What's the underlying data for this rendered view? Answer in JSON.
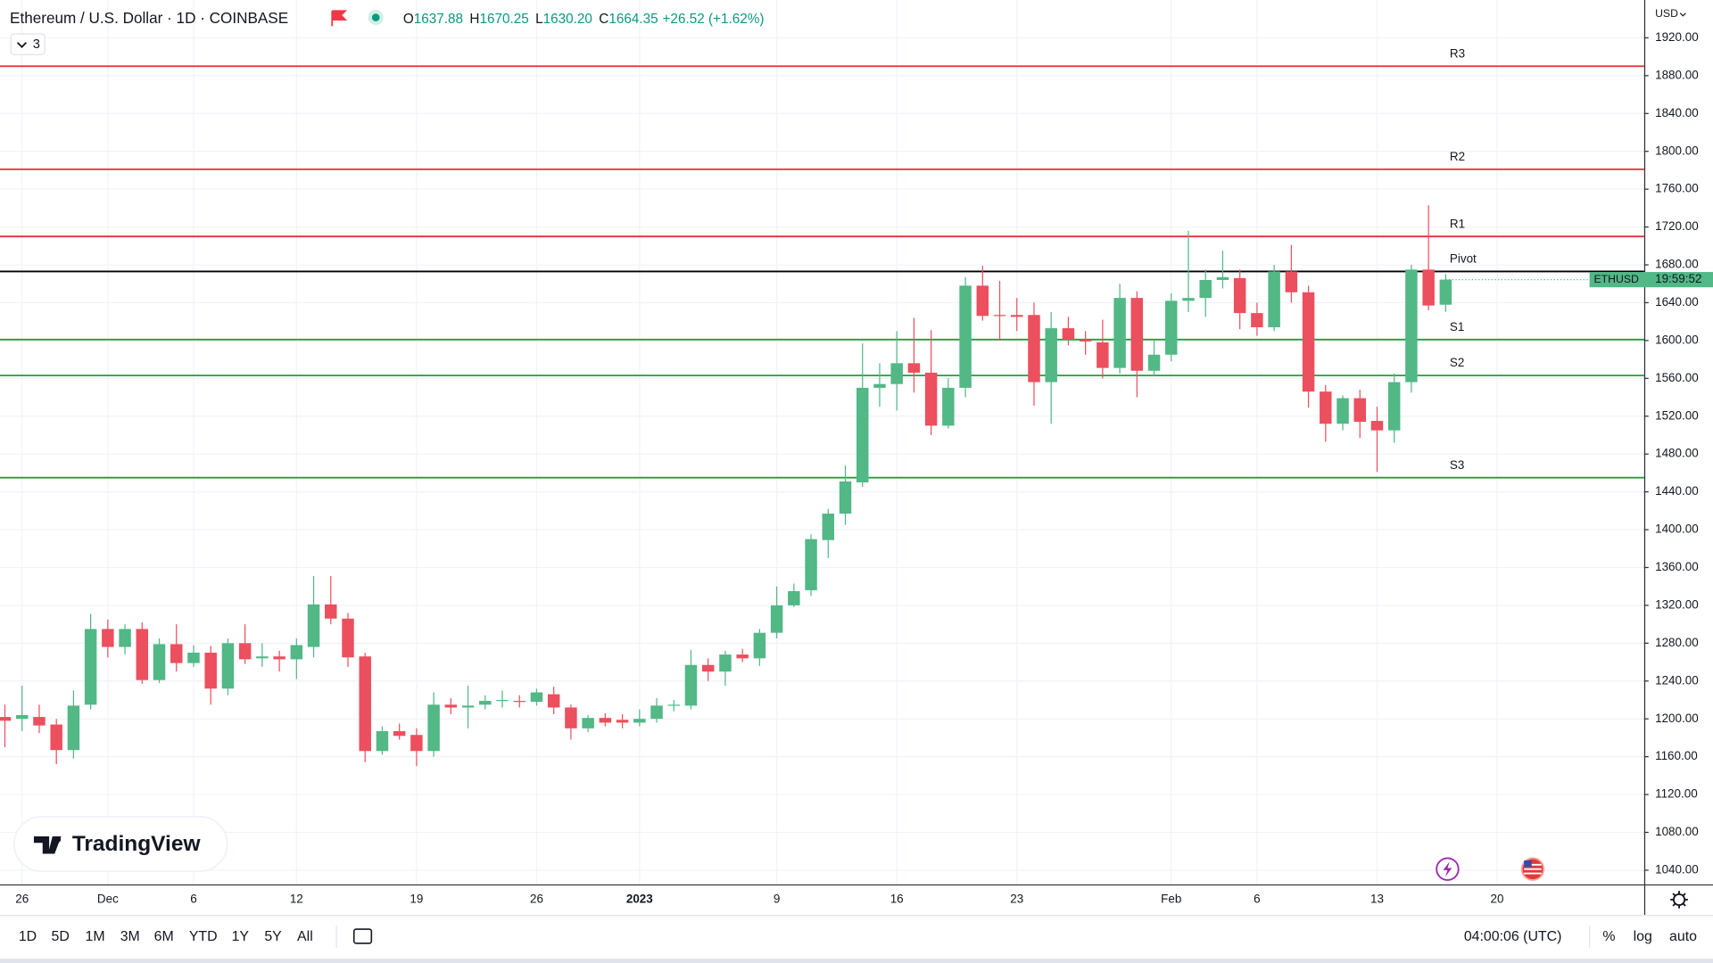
{
  "header": {
    "title": "Ethereum / U.S. Dollar · 1D · COINBASE",
    "ohlc": [
      {
        "label": "O",
        "value": "1637.88"
      },
      {
        "label": "H",
        "value": "1670.25"
      },
      {
        "label": "L",
        "value": "1630.20"
      },
      {
        "label": "C",
        "value": "1664.35"
      }
    ],
    "change": "+26.52 (+1.62%)",
    "indicators": "3",
    "currency": "USD",
    "logo": "TradingView"
  },
  "chart_data": {
    "type": "candlestick",
    "categories": [
      null,
      "26",
      null,
      null,
      null,
      null,
      "Dec",
      null,
      null,
      null,
      null,
      "6",
      null,
      null,
      null,
      null,
      null,
      "12",
      null,
      null,
      null,
      null,
      null,
      null,
      "19",
      null,
      null,
      null,
      null,
      null,
      null,
      "26",
      null,
      null,
      null,
      null,
      null,
      "2023",
      null,
      null,
      null,
      null,
      null,
      null,
      null,
      "9",
      null,
      null,
      null,
      null,
      null,
      null,
      "16",
      null,
      null,
      null,
      null,
      null,
      null,
      "23",
      null,
      null,
      null,
      null,
      null,
      null,
      null,
      null,
      "Feb",
      null,
      null,
      null,
      null,
      "6",
      null,
      null,
      null,
      null,
      null,
      null,
      "13",
      null,
      null,
      null,
      null,
      null,
      null,
      "20"
    ],
    "open": [
      1202,
      1200,
      1202,
      1194,
      1167,
      1215,
      1295,
      1276,
      1295,
      1241,
      1279,
      1259,
      1270,
      1232,
      1280,
      1264,
      1266,
      1263,
      1276,
      1321,
      1306,
      1266,
      1166,
      1187,
      1183,
      1166,
      1215,
      1212,
      1215,
      1219,
      1219,
      1218,
      1226,
      1212,
      1190,
      1201,
      1199,
      1196,
      1200,
      1214,
      1214,
      1257,
      1250,
      1268,
      1264,
      1291,
      1320,
      1336,
      1389,
      1417,
      1450,
      1550,
      1554,
      1576,
      1566,
      1510,
      1550,
      1658,
      1627,
      1627,
      1627,
      1556,
      1613,
      1601,
      1598,
      1571,
      1645,
      1568,
      1585,
      1642,
      1645,
      1664,
      1666,
      1629,
      1614,
      1673,
      1651,
      1546,
      1512,
      1539,
      1515,
      1505,
      1556,
      1675,
      1637.88,
      null,
      null,
      null
    ],
    "high": [
      1215,
      1235,
      1215,
      1200,
      1230,
      1311,
      1305,
      1300,
      1302,
      1285,
      1300,
      1278,
      1277,
      1285,
      1300,
      1280,
      1272,
      1285,
      1351,
      1351,
      1312,
      1270,
      1192,
      1195,
      1190,
      1228,
      1222,
      1235,
      1225,
      1230,
      1225,
      1232,
      1234,
      1215,
      1204,
      1206,
      1205,
      1210,
      1222,
      1220,
      1273,
      1264,
      1272,
      1274,
      1295,
      1340,
      1343,
      1395,
      1422,
      1468,
      1597,
      1576,
      1610,
      1624,
      1611,
      1560,
      1667,
      1679,
      1663,
      1645,
      1640,
      1630,
      1625,
      1610,
      1622,
      1660,
      1652,
      1600,
      1650,
      1716,
      1675,
      1695,
      1675,
      1640,
      1680,
      1701,
      1658,
      1553,
      1542,
      1548,
      1530,
      1565,
      1680,
      1743,
      1670.25,
      null,
      null,
      null
    ],
    "low": [
      1170,
      1187,
      1185,
      1152,
      1158,
      1210,
      1265,
      1268,
      1237,
      1238,
      1250,
      1255,
      1215,
      1225,
      1258,
      1255,
      1250,
      1242,
      1265,
      1300,
      1255,
      1154,
      1162,
      1178,
      1150,
      1160,
      1205,
      1190,
      1210,
      1212,
      1212,
      1214,
      1205,
      1178,
      1186,
      1192,
      1190,
      1192,
      1196,
      1208,
      1210,
      1240,
      1235,
      1260,
      1256,
      1285,
      1318,
      1330,
      1370,
      1405,
      1445,
      1530,
      1526,
      1545,
      1500,
      1507,
      1540,
      1621,
      1600,
      1610,
      1531,
      1512,
      1595,
      1585,
      1560,
      1565,
      1540,
      1562,
      1578,
      1630,
      1625,
      1655,
      1612,
      1605,
      1610,
      1640,
      1529,
      1493,
      1505,
      1497,
      1461,
      1492,
      1545,
      1632,
      1630.2,
      null,
      null,
      null
    ],
    "close": [
      1198,
      1204,
      1193,
      1167,
      1214,
      1295,
      1276,
      1295,
      1241,
      1279,
      1259,
      1270,
      1232,
      1280,
      1263,
      1266,
      1263,
      1278,
      1321,
      1306,
      1265,
      1166,
      1187,
      1182,
      1166,
      1215,
      1212,
      1214,
      1219,
      1220,
      1218,
      1228,
      1212,
      1190,
      1201,
      1196,
      1196,
      1200,
      1214,
      1215,
      1257,
      1250,
      1268,
      1264,
      1291,
      1320,
      1335,
      1390,
      1417,
      1451,
      1550,
      1554,
      1576,
      1566,
      1510,
      1550,
      1658,
      1626,
      1626,
      1625,
      1556,
      1613,
      1601,
      1599,
      1571,
      1645,
      1568,
      1585,
      1642,
      1645,
      1664,
      1667,
      1629,
      1614,
      1673,
      1651,
      1546,
      1512,
      1539,
      1514,
      1505,
      1556,
      1675,
      1637,
      1664.35,
      null,
      null,
      null
    ],
    "up_color": "#51b886",
    "down_color": "#ec4f5e",
    "ylim": [
      1025,
      1960
    ],
    "yticks": [
      {
        "value": 1040,
        "label": "1040.00"
      },
      {
        "value": 1080,
        "label": "1080.00"
      },
      {
        "value": 1120,
        "label": "1120.00"
      },
      {
        "value": 1160,
        "label": "1160.00"
      },
      {
        "value": 1200,
        "label": "1200.00"
      },
      {
        "value": 1240,
        "label": "1240.00"
      },
      {
        "value": 1280,
        "label": "1280.00"
      },
      {
        "value": 1320,
        "label": "1320.00"
      },
      {
        "value": 1360,
        "label": "1360.00"
      },
      {
        "value": 1400,
        "label": "1400.00"
      },
      {
        "value": 1440,
        "label": "1440.00"
      },
      {
        "value": 1480,
        "label": "1480.00"
      },
      {
        "value": 1520,
        "label": "1520.00"
      },
      {
        "value": 1560,
        "label": "1560.00"
      },
      {
        "value": 1600,
        "label": "1600.00"
      },
      {
        "value": 1640,
        "label": "1640.00"
      },
      {
        "value": 1680,
        "label": "1680.00"
      },
      {
        "value": 1720,
        "label": "1720.00"
      },
      {
        "value": 1760,
        "label": "1760.00"
      },
      {
        "value": 1800,
        "label": "1800.00"
      },
      {
        "value": 1840,
        "label": "1840.00"
      },
      {
        "value": 1880,
        "label": "1880.00"
      },
      {
        "value": 1920,
        "label": "1920.00"
      }
    ],
    "grid": true,
    "levels": [
      {
        "name": "R3",
        "value": 1890,
        "color": "#e52f3a"
      },
      {
        "name": "R2",
        "value": 1781,
        "color": "#e52f3a"
      },
      {
        "name": "R1",
        "value": 1710,
        "color": "#e52f3a"
      },
      {
        "name": "Pivot",
        "value": 1673,
        "color": "#000000"
      },
      {
        "name": "S1",
        "value": 1601,
        "color": "#1aa33a"
      },
      {
        "name": "S2",
        "value": 1563,
        "color": "#1aa33a"
      },
      {
        "name": "S3",
        "value": 1455,
        "color": "#1aa33a"
      }
    ],
    "symbol": "ETHUSD",
    "countdown": "19:59:52"
  },
  "toolbar": {
    "ranges": [
      "1D",
      "5D",
      "1M",
      "3M",
      "6M",
      "YTD",
      "1Y",
      "5Y",
      "All"
    ],
    "time": "04:00:06 (UTC)",
    "options": [
      "%",
      "log",
      "auto"
    ]
  }
}
